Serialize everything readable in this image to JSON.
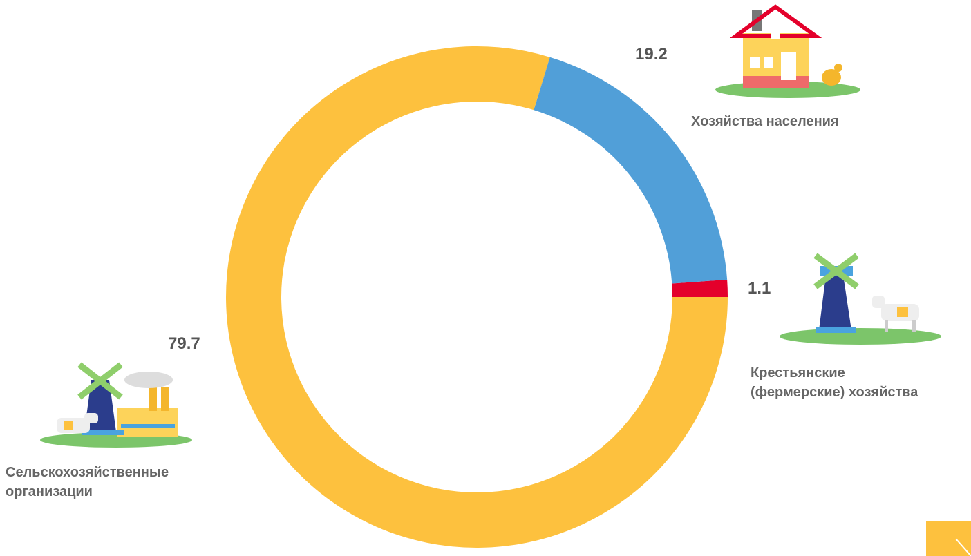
{
  "chart_data": {
    "type": "donut",
    "categories": [
      "Сельскохозяйственные\nорганизации",
      "Хозяйства населения",
      "Крестьянские\n(фермерские) хозяйства"
    ],
    "values": [
      79.7,
      19.2,
      1.1
    ],
    "colors": [
      "#fdc13e",
      "#519fd8",
      "#e4002b"
    ]
  }
}
